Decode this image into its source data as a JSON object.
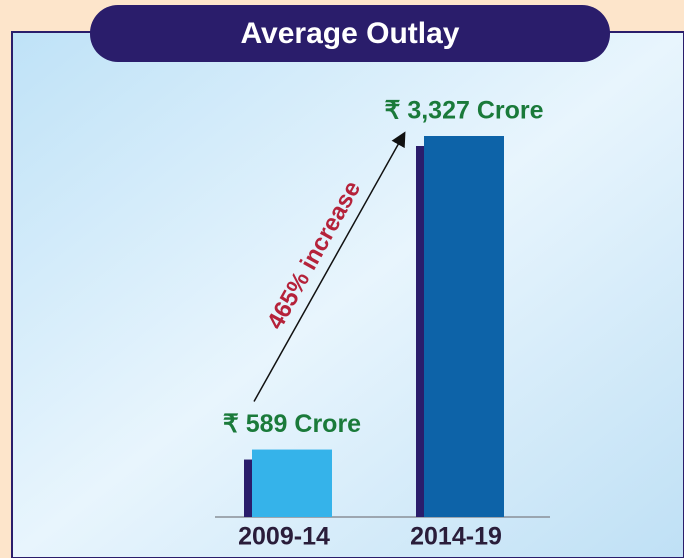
{
  "chart_data": {
    "type": "bar",
    "title": "Average Outlay",
    "categories": [
      "2009-14",
      "2014-19"
    ],
    "values": [
      589,
      3327
    ],
    "value_labels": [
      "₹ 589 Crore",
      "₹ 3,327 Crore"
    ],
    "colors": [
      "#35b3ea",
      "#0d63a8"
    ],
    "annotation": "465% increase"
  }
}
